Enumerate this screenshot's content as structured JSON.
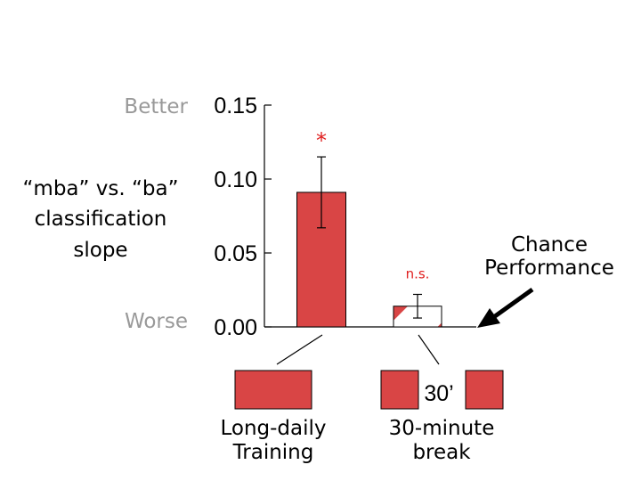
{
  "chart_data": {
    "type": "bar",
    "categories": [
      "Long-daily Training",
      "30-minute break"
    ],
    "values": [
      0.091,
      0.014
    ],
    "errors": [
      0.024,
      0.008
    ],
    "significance": [
      "*",
      "n.s."
    ],
    "ylim": [
      0,
      0.15
    ],
    "y_ticks": [
      "0.00",
      "0.05",
      "0.10",
      "0.15"
    ],
    "ylabel_lines": [
      "“mba” vs. “ba”",
      "classification",
      "slope"
    ],
    "y_top_label": "Better",
    "y_bottom_label": "Worse",
    "annotation_lines": [
      "Chance",
      "Performance"
    ],
    "bar_color": "#d94545",
    "sig_color": "#e02020",
    "grid": false,
    "legend": "none"
  },
  "conditions": [
    {
      "label_lines": [
        "Long-daily",
        "Training"
      ]
    },
    {
      "label_lines": [
        "30-minute",
        "break"
      ],
      "break_text": "30’"
    }
  ]
}
